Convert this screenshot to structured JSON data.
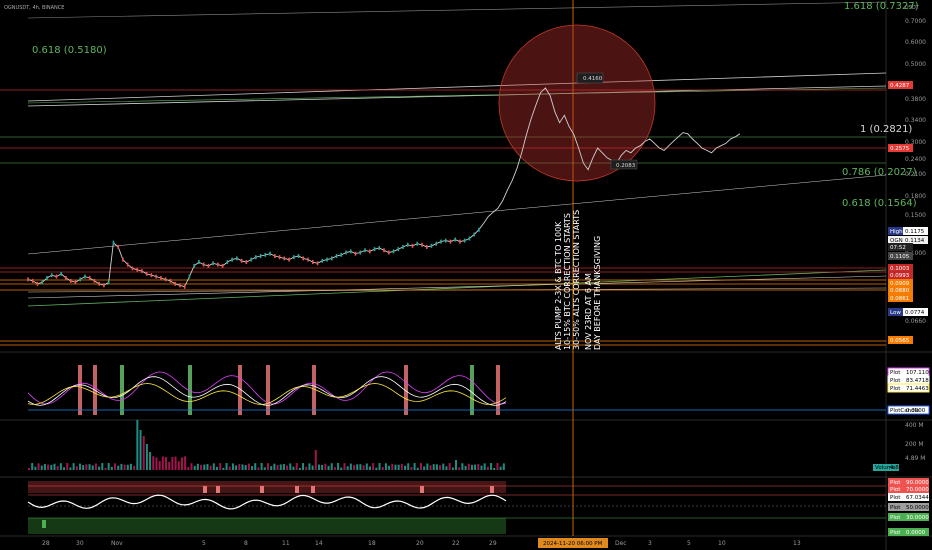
{
  "header": {
    "symbol": "OGNUSDT, 4h, BINANCE",
    "currency": "USDT"
  },
  "chart_data": {
    "type": "line",
    "price_axis": [
      "0.7000",
      "0.6000",
      "0.5000",
      "0.3800",
      "0.3400",
      "0.3000",
      "0.2400",
      "0.2100",
      "0.1800",
      "0.1500",
      "0.1300",
      "0.1000",
      "0.0660"
    ],
    "time_axis": [
      "28",
      "30",
      "Nov",
      "5",
      "8",
      "11",
      "14",
      "18",
      "20",
      "22",
      "29",
      "Dec",
      "3",
      "5",
      "10",
      "13"
    ],
    "crosshair_time": "2024-11-20  06:00 PM",
    "price_tags": [
      {
        "label": "0.4287",
        "color": "#e53935"
      },
      {
        "label": "0.2575",
        "color": "#e53935"
      },
      {
        "label": "High",
        "sub": "0.1175",
        "color": "#2a3a8a"
      },
      {
        "label": "OGNUSDT",
        "sub": "0.1134",
        "color": "#f2f2f2"
      },
      {
        "label": "07:52",
        "color": "#222222"
      },
      {
        "label": "0.1105",
        "color": "#444444"
      },
      {
        "label": "0.1003",
        "color": "#c62828"
      },
      {
        "label": "0.0993",
        "color": "#c62828"
      },
      {
        "label": "0.0909",
        "color": "#f57c00"
      },
      {
        "label": "0.0880",
        "color": "#f57c00"
      },
      {
        "label": "0.0861",
        "color": "#f57c00"
      },
      {
        "label": "Low",
        "sub": "0.0774",
        "color": "#2a3a8a"
      },
      {
        "label": "0.0565",
        "color": "#f57c00"
      }
    ],
    "fib_labels": [
      {
        "text": "1.618 (0.7327)",
        "color": "#5fb55f"
      },
      {
        "text": "0.618 (0.5180)",
        "color": "#5fb55f"
      },
      {
        "text": "1 (0.2821)",
        "color": "#d8d8d8"
      },
      {
        "text": "0.786 (0.2027)",
        "color": "#5fb55f"
      },
      {
        "text": "0.618 (0.1564)",
        "color": "#5fb55f"
      }
    ],
    "peak_label": "0.4160",
    "low_label": "0.2083",
    "annotations": [
      "ALTS PUMP 2-3X & BTC TO 100K",
      "10-15% BTC CORRECTION STARTS",
      "30-50% ALTS CORRECTION STARTS",
      "NOV 23RD AT 6 AM",
      "DAY BEFORE THANKSGIVING"
    ],
    "ind1_tags": [
      {
        "name": "Plot",
        "value": "107.1109",
        "color": "#e040fb"
      },
      {
        "name": "Plot",
        "value": "83.4718",
        "color": "#ffffff"
      },
      {
        "name": "Plot",
        "value": "71.4463",
        "color": "#ffeb3b"
      },
      {
        "name": "PlotCandle",
        "value": "0.0000",
        "color": "#2962ff"
      }
    ],
    "volume_axis": [
      "400 M",
      "200 M",
      "4.89 M"
    ],
    "volume_tag": {
      "name": "Volume",
      "value": "4.89 M"
    },
    "ind3_tags": [
      {
        "name": "Plot",
        "value": "90.0000",
        "color": "#ef5350"
      },
      {
        "name": "Plot",
        "value": "70.0000",
        "color": "#ef5350"
      },
      {
        "name": "Plot",
        "value": "67.0344",
        "color": "#ffffff"
      },
      {
        "name": "Plot",
        "value": "50.0000",
        "color": "#9e9e9e"
      },
      {
        "name": "Plot",
        "value": "30.0000",
        "color": "#4caf50"
      },
      {
        "name": "Plot",
        "value": "0.0000",
        "color": "#4caf50"
      }
    ],
    "series": [
      {
        "name": "price",
        "values": [
          0.082,
          0.081,
          0.079,
          0.08,
          0.083,
          0.085,
          0.084,
          0.086,
          0.083,
          0.081,
          0.08,
          0.082,
          0.084,
          0.083,
          0.081,
          0.079,
          0.078,
          0.08,
          0.112,
          0.108,
          0.097,
          0.093,
          0.09,
          0.089,
          0.088,
          0.086,
          0.085,
          0.084,
          0.083,
          0.082,
          0.081,
          0.079,
          0.078,
          0.077,
          0.084,
          0.092,
          0.095,
          0.093,
          0.092,
          0.094,
          0.093,
          0.092,
          0.095,
          0.097,
          0.098,
          0.096,
          0.095,
          0.097,
          0.099,
          0.1,
          0.101,
          0.102,
          0.1,
          0.099,
          0.098,
          0.097,
          0.099,
          0.1,
          0.098,
          0.097,
          0.095,
          0.094,
          0.096,
          0.097,
          0.098,
          0.1,
          0.101,
          0.103,
          0.104,
          0.102,
          0.103,
          0.105,
          0.104,
          0.106,
          0.107,
          0.105,
          0.103,
          0.104,
          0.106,
          0.108,
          0.11,
          0.109,
          0.111,
          0.11,
          0.108,
          0.109,
          0.111,
          0.113,
          0.114,
          0.113,
          0.115,
          0.113,
          0.114,
          0.116,
          0.12,
          0.125,
          0.132,
          0.14,
          0.145,
          0.15,
          0.16,
          0.175,
          0.19,
          0.21,
          0.24,
          0.28,
          0.32,
          0.36,
          0.4,
          0.416,
          0.39,
          0.34,
          0.31,
          0.33,
          0.3,
          0.28,
          0.25,
          0.22,
          0.208,
          0.23,
          0.25,
          0.24,
          0.23,
          0.225,
          0.22,
          0.235,
          0.245,
          0.24,
          0.25,
          0.255,
          0.265,
          0.27,
          0.26,
          0.25,
          0.245,
          0.255,
          0.265,
          0.275,
          0.285,
          0.282,
          0.27,
          0.26,
          0.25,
          0.245,
          0.24,
          0.25,
          0.255,
          0.26,
          0.27,
          0.275,
          0.282
        ]
      }
    ]
  }
}
